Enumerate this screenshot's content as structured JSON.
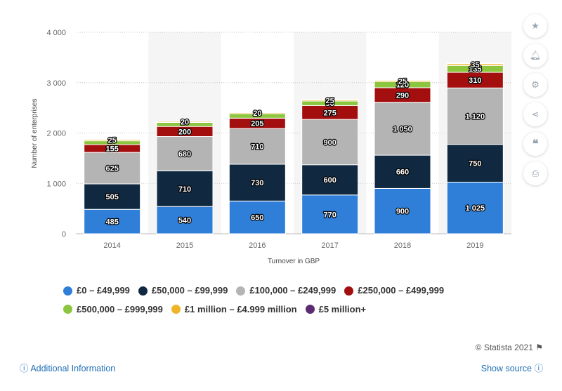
{
  "chart_data": {
    "type": "bar",
    "stacked": true,
    "categories": [
      "2014",
      "2015",
      "2016",
      "2017",
      "2018",
      "2019"
    ],
    "series": [
      {
        "name": "£0 – £49,999",
        "color": "#2f7ed8",
        "values": [
          485,
          540,
          650,
          770,
          900,
          1025
        ],
        "labels": [
          "485",
          "540",
          "650",
          "770",
          "900",
          "1 025"
        ]
      },
      {
        "name": "£50,000 – £99,999",
        "color": "#102840",
        "values": [
          505,
          710,
          730,
          600,
          660,
          750
        ],
        "labels": [
          "505",
          "710",
          "730",
          "600",
          "660",
          "750"
        ]
      },
      {
        "name": "£100,000 – £249,999",
        "color": "#b4b4b4",
        "values": [
          625,
          680,
          710,
          900,
          1050,
          1120
        ],
        "labels": [
          "625",
          "680",
          "710",
          "900",
          "1 050",
          "1 120"
        ]
      },
      {
        "name": "£250,000 – £499,999",
        "color": "#a30f0f",
        "values": [
          155,
          200,
          205,
          275,
          290,
          310
        ],
        "labels": [
          "155",
          "200",
          "205",
          "275",
          "290",
          "310"
        ]
      },
      {
        "name": "£500,000 – £999,999",
        "color": "#8cc63e",
        "values": [
          75,
          80,
          90,
          90,
          120,
          135
        ],
        "labels": [
          "",
          "",
          "",
          "90",
          "120",
          "135"
        ]
      },
      {
        "name": "£1 million – £4.999 million",
        "color": "#f0b429",
        "values": [
          25,
          20,
          20,
          25,
          25,
          35
        ],
        "labels": [
          "25",
          "20",
          "20",
          "25",
          "25",
          "35"
        ]
      },
      {
        "name": "£5 million+",
        "color": "#5b2c6f",
        "values": [
          8,
          8,
          8,
          8,
          10,
          12
        ],
        "labels": [
          "",
          "",
          "",
          "",
          "",
          ""
        ]
      }
    ],
    "xlabel": "Turnover in GBP",
    "ylabel": "Number of enterprises",
    "ylim": [
      0,
      4000
    ],
    "yticks": [
      0,
      1000,
      2000,
      3000,
      4000
    ],
    "ytick_labels": [
      "0",
      "1 000",
      "2 000",
      "3 000",
      "4 000"
    ],
    "grid": true,
    "legend_position": "bottom"
  },
  "footer": {
    "credit": "© Statista 2021",
    "additional_info": "Additional Information",
    "show_source": "Show source"
  },
  "sidebar": {
    "buttons": [
      "star-icon",
      "bell-icon",
      "gear-icon",
      "share-icon",
      "quote-icon",
      "print-icon"
    ]
  }
}
